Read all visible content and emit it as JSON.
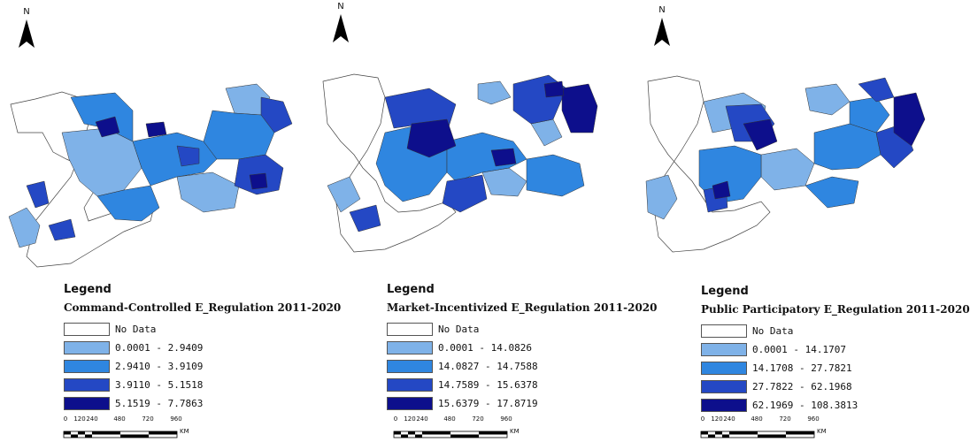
{
  "panels": [
    {
      "legend_title": "Legend",
      "legend_subtitle": "Command-Controlled E_Regulation 2011-2020",
      "no_data_label": "No Data",
      "classes": [
        {
          "label": "0.0001 - 2.9409",
          "color": "#7fb2e8"
        },
        {
          "label": "2.9410 - 3.9109",
          "color": "#2f86e0"
        },
        {
          "label": "3.9110 - 5.1518",
          "color": "#2448c4"
        },
        {
          "label": "5.1519 - 7.7863",
          "color": "#0d0f8c"
        }
      ],
      "north_label": "N",
      "scale": {
        "ticks": [
          "0",
          "120",
          "240",
          "480",
          "720",
          "960"
        ],
        "unit": "KM"
      }
    },
    {
      "legend_title": "Legend",
      "legend_subtitle": "Market-Incentivized E_Regulation 2011-2020",
      "no_data_label": "No Data",
      "classes": [
        {
          "label": "0.0001 - 14.0826",
          "color": "#7fb2e8"
        },
        {
          "label": "14.0827 - 14.7588",
          "color": "#2f86e0"
        },
        {
          "label": "14.7589 - 15.6378",
          "color": "#2448c4"
        },
        {
          "label": "15.6379 - 17.8719",
          "color": "#0d0f8c"
        }
      ],
      "north_label": "N",
      "scale": {
        "ticks": [
          "0",
          "120",
          "240",
          "480",
          "720",
          "960"
        ],
        "unit": "KM"
      }
    },
    {
      "legend_title": "Legend",
      "legend_subtitle": "Public Participatory E_Regulation 2011-2020",
      "no_data_label": "No Data",
      "classes": [
        {
          "label": "0.0001 - 14.1707",
          "color": "#7fb2e8"
        },
        {
          "label": "14.1708 - 27.7821",
          "color": "#2f86e0"
        },
        {
          "label": "27.7822 - 62.1968",
          "color": "#2448c4"
        },
        {
          "label": "62.1969 - 108.3813",
          "color": "#0d0f8c"
        }
      ],
      "north_label": "N",
      "scale": {
        "ticks": [
          "0",
          "120",
          "240",
          "480",
          "720",
          "960"
        ],
        "unit": "KM"
      }
    }
  ],
  "icons": {
    "north_arrow": "north-arrow-icon"
  }
}
